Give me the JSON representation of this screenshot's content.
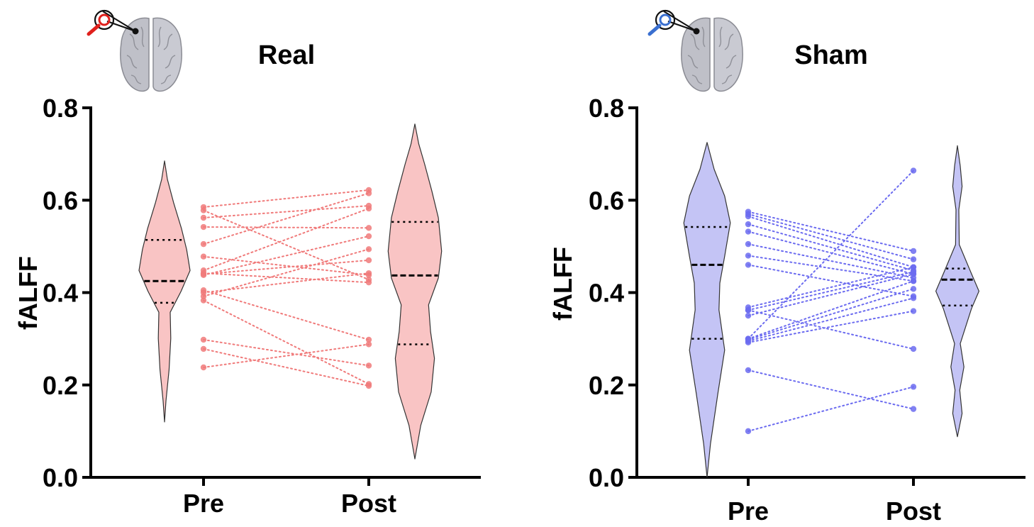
{
  "chart_data": [
    {
      "type": "violin",
      "title": "Real",
      "ylabel": "fALFF",
      "xlabel": "",
      "categories": [
        "Pre",
        "Post"
      ],
      "yticks": [
        "0.0",
        "0.2",
        "0.4",
        "0.6",
        "0.8"
      ],
      "ylim": [
        0,
        0.8
      ],
      "color": "#f07a7a",
      "fill": "#f9c4c4",
      "icon": "brain-icon",
      "icon_color": "#e0201c",
      "violins": [
        {
          "name": "Pre",
          "min": 0.12,
          "max": 0.685,
          "median": 0.425,
          "q1": 0.378,
          "q3": 0.514
        },
        {
          "name": "Post",
          "min": 0.04,
          "max": 0.765,
          "median": 0.437,
          "q1": 0.288,
          "q3": 0.553
        }
      ],
      "paired": [
        [
          0.585,
          0.622
        ],
        [
          0.578,
          0.428
        ],
        [
          0.562,
          0.588
        ],
        [
          0.542,
          0.54
        ],
        [
          0.505,
          0.615
        ],
        [
          0.478,
          0.438
        ],
        [
          0.448,
          0.582
        ],
        [
          0.442,
          0.422
        ],
        [
          0.44,
          0.47
        ],
        [
          0.438,
          0.522
        ],
        [
          0.405,
          0.298
        ],
        [
          0.4,
          0.442
        ],
        [
          0.392,
          0.494
        ],
        [
          0.383,
          0.202
        ],
        [
          0.298,
          0.242
        ],
        [
          0.278,
          0.198
        ],
        [
          0.238,
          0.288
        ]
      ]
    },
    {
      "type": "violin",
      "title": "Sham",
      "ylabel": "fALFF",
      "xlabel": "",
      "categories": [
        "Pre",
        "Post"
      ],
      "yticks": [
        "0.0",
        "0.2",
        "0.4",
        "0.6",
        "0.8"
      ],
      "ylim": [
        0,
        0.8
      ],
      "color": "#6b6bf0",
      "fill": "#c4c4f5",
      "icon": "brain-icon",
      "icon_color": "#3a6fd0",
      "violins": [
        {
          "name": "Pre",
          "min": 0.0,
          "max": 0.725,
          "median": 0.46,
          "q1": 0.3,
          "q3": 0.542
        },
        {
          "name": "Post",
          "min": 0.088,
          "max": 0.718,
          "median": 0.428,
          "q1": 0.372,
          "q3": 0.452
        }
      ],
      "paired": [
        [
          0.575,
          0.49
        ],
        [
          0.57,
          0.472
        ],
        [
          0.565,
          0.455
        ],
        [
          0.548,
          0.448
        ],
        [
          0.532,
          0.44
        ],
        [
          0.505,
          0.432
        ],
        [
          0.48,
          0.425
        ],
        [
          0.46,
          0.392
        ],
        [
          0.368,
          0.455
        ],
        [
          0.362,
          0.445
        ],
        [
          0.35,
          0.44
        ],
        [
          0.3,
          0.425
        ],
        [
          0.298,
          0.408
        ],
        [
          0.295,
          0.388
        ],
        [
          0.292,
          0.36
        ],
        [
          0.232,
          0.148
        ],
        [
          0.1,
          0.196
        ],
        [
          0.3,
          0.664
        ],
        [
          0.362,
          0.278
        ]
      ]
    }
  ]
}
